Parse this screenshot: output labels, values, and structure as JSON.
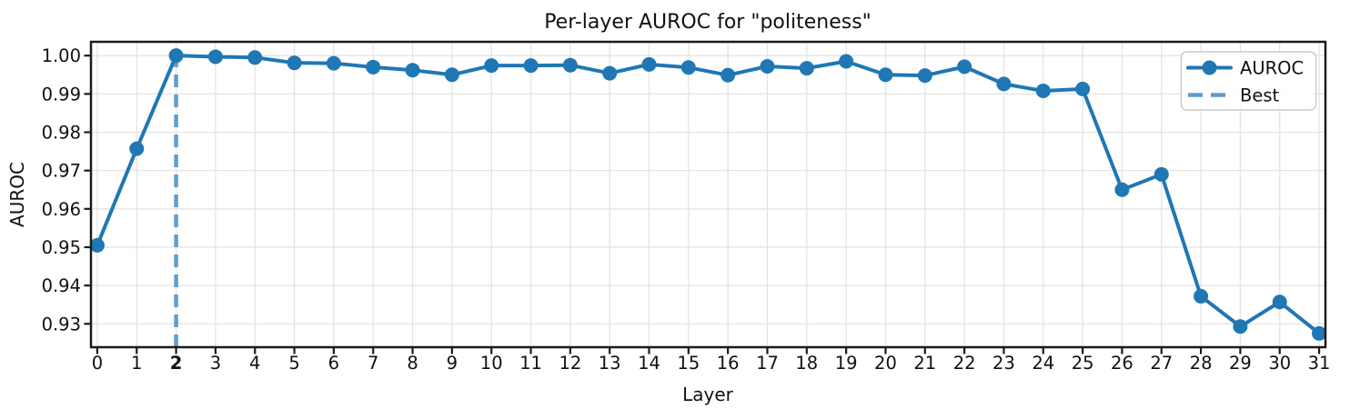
{
  "chart_data": {
    "type": "line",
    "title": "Per-layer AUROC for \"politeness\"",
    "xlabel": "Layer",
    "ylabel": "AUROC",
    "x": [
      0,
      1,
      2,
      3,
      4,
      5,
      6,
      7,
      8,
      9,
      10,
      11,
      12,
      13,
      14,
      15,
      16,
      17,
      18,
      19,
      20,
      21,
      22,
      23,
      24,
      25,
      26,
      27,
      28,
      29,
      30,
      31
    ],
    "series": [
      {
        "name": "AUROC",
        "marker": "circle",
        "values": [
          0.9505,
          0.9757,
          1.0,
          0.9997,
          0.9995,
          0.9981,
          0.998,
          0.997,
          0.9962,
          0.995,
          0.9974,
          0.9974,
          0.9975,
          0.9954,
          0.9977,
          0.9969,
          0.9949,
          0.9972,
          0.9967,
          0.9985,
          0.995,
          0.9948,
          0.9971,
          0.9926,
          0.9908,
          0.9913,
          0.965,
          0.969,
          0.9372,
          0.9293,
          0.9357,
          0.9275
        ]
      }
    ],
    "best_layer": 2,
    "annotations": [
      {
        "kind": "vline",
        "x": 2,
        "label": "Best",
        "style": "dashed"
      }
    ],
    "legend": {
      "position": "upper right",
      "entries": [
        {
          "label": "AUROC",
          "style": "solid-line-with-circle-marker"
        },
        {
          "label": "Best",
          "style": "dashed-line"
        }
      ]
    },
    "grid": true,
    "xlim": [
      -0.16,
      31.16
    ],
    "ylim": [
      0.9239,
      1.0036
    ],
    "xticks": [
      0,
      1,
      2,
      3,
      4,
      5,
      6,
      7,
      8,
      9,
      10,
      11,
      12,
      13,
      14,
      15,
      16,
      17,
      18,
      19,
      20,
      21,
      22,
      23,
      24,
      25,
      26,
      27,
      28,
      29,
      30,
      31
    ],
    "yticks": [
      1.0,
      0.99,
      0.98,
      0.97,
      0.96,
      0.95,
      0.94,
      0.93
    ],
    "ytick_labels": [
      "1.00",
      "0.99",
      "0.98",
      "0.97",
      "0.96",
      "0.95",
      "0.94",
      "0.93"
    ],
    "colors": {
      "line": "#1f77b4",
      "marker": "#1f77b4",
      "best_line": "#5f9dcd",
      "grid": "#e4e4e4",
      "spine": "#1a1a1a",
      "background": "#ffffff",
      "text": "#111111"
    }
  }
}
